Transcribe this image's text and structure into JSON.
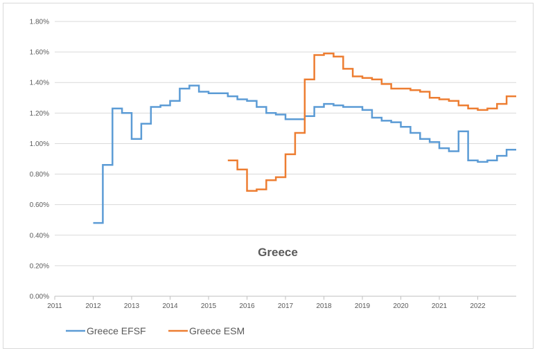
{
  "chart_data": {
    "type": "line",
    "title": "Greece",
    "xlabel": "",
    "ylabel": "",
    "xlim": [
      2011,
      2023
    ],
    "ylim": [
      0,
      1.8
    ],
    "x_ticks": [
      "2011",
      "2012",
      "2013",
      "2014",
      "2015",
      "2016",
      "2017",
      "2018",
      "2019",
      "2020",
      "2021",
      "2022"
    ],
    "y_ticks": [
      "0.00%",
      "0.20%",
      "0.40%",
      "0.60%",
      "0.80%",
      "1.00%",
      "1.20%",
      "1.40%",
      "1.60%",
      "1.80%"
    ],
    "grid": "horizontal",
    "legend_position": "bottom-left",
    "step": true,
    "series": [
      {
        "name": "Greece EFSF",
        "color": "#5b9bd5",
        "x": [
          2012.0,
          2012.25,
          2012.5,
          2012.75,
          2013.0,
          2013.25,
          2013.5,
          2013.75,
          2014.0,
          2014.25,
          2014.5,
          2014.75,
          2015.0,
          2015.25,
          2015.5,
          2015.75,
          2016.0,
          2016.25,
          2016.5,
          2016.75,
          2017.0,
          2017.25,
          2017.5,
          2017.75,
          2018.0,
          2018.25,
          2018.5,
          2018.75,
          2019.0,
          2019.25,
          2019.5,
          2019.75,
          2020.0,
          2020.25,
          2020.5,
          2020.75,
          2021.0,
          2021.25,
          2021.5,
          2021.75,
          2022.0,
          2022.25,
          2022.5,
          2022.75,
          2023.0
        ],
        "values": [
          0.48,
          0.86,
          1.23,
          1.2,
          1.03,
          1.13,
          1.24,
          1.25,
          1.28,
          1.36,
          1.38,
          1.34,
          1.33,
          1.33,
          1.31,
          1.29,
          1.28,
          1.24,
          1.2,
          1.19,
          1.16,
          1.16,
          1.18,
          1.24,
          1.26,
          1.25,
          1.24,
          1.24,
          1.22,
          1.17,
          1.15,
          1.14,
          1.11,
          1.07,
          1.03,
          1.01,
          0.97,
          0.95,
          1.08,
          0.89,
          0.88,
          0.89,
          0.92,
          0.96,
          0.96
        ]
      },
      {
        "name": "Greece ESM",
        "color": "#ed7d31",
        "x": [
          2015.5,
          2015.75,
          2016.0,
          2016.25,
          2016.5,
          2016.75,
          2017.0,
          2017.25,
          2017.5,
          2017.75,
          2018.0,
          2018.25,
          2018.5,
          2018.75,
          2019.0,
          2019.25,
          2019.5,
          2019.75,
          2020.0,
          2020.25,
          2020.5,
          2020.75,
          2021.0,
          2021.25,
          2021.5,
          2021.75,
          2022.0,
          2022.25,
          2022.5,
          2022.75,
          2023.0
        ],
        "values": [
          0.89,
          0.83,
          0.69,
          0.7,
          0.76,
          0.78,
          0.93,
          1.07,
          1.42,
          1.58,
          1.59,
          1.57,
          1.49,
          1.44,
          1.43,
          1.42,
          1.39,
          1.36,
          1.36,
          1.35,
          1.34,
          1.3,
          1.29,
          1.28,
          1.25,
          1.23,
          1.22,
          1.23,
          1.26,
          1.31,
          1.31
        ]
      }
    ]
  }
}
